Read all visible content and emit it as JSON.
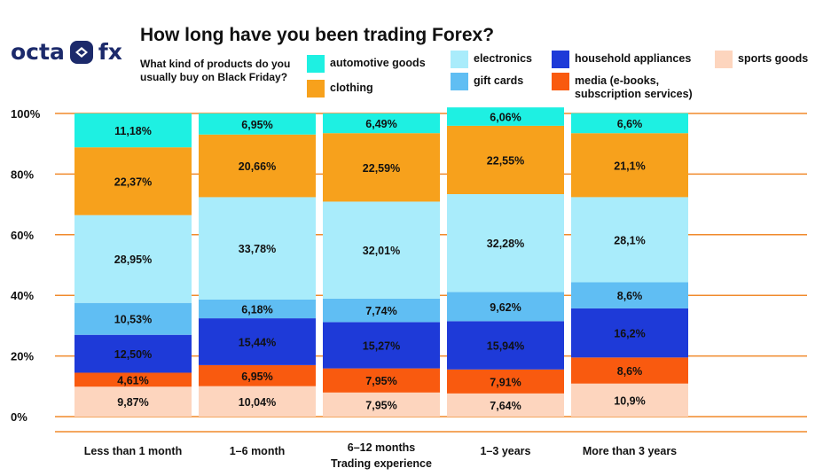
{
  "brand": {
    "name_left": "octa",
    "name_right": "fx"
  },
  "title": "How long have you been trading Forex?",
  "question": "What kind of products do you usually buy on Black Friday?",
  "colors": {
    "gridline": "#f08a2c",
    "axis": "#f08a2c"
  },
  "chart_data": {
    "type": "bar",
    "stacked": true,
    "title": "How long have you been trading Forex?",
    "xlabel": "Trading experience",
    "ylabel": "",
    "ylim": [
      0,
      100
    ],
    "y_ticks": [
      "0%",
      "20%",
      "40%",
      "60%",
      "80%",
      "100%"
    ],
    "grid": true,
    "legend_position": "top",
    "categories": [
      "Less than 1 month",
      "1–6 month",
      "6–12 months",
      "1–3 years",
      "More than 3 years"
    ],
    "series": [
      {
        "name": "sports goods",
        "color": "#fdd5be",
        "values": [
          9.87,
          10.04,
          7.95,
          7.64,
          10.9
        ],
        "labels": [
          "9,87%",
          "10,04%",
          "7,95%",
          "7,64%",
          "10,9%"
        ]
      },
      {
        "name": "media (e-books, subscription services)",
        "color": "#f95a0f",
        "values": [
          4.61,
          6.95,
          7.95,
          7.91,
          8.6
        ],
        "labels": [
          "4,61%",
          "6,95%",
          "7,95%",
          "7,91%",
          "8,6%"
        ]
      },
      {
        "name": "household appliances",
        "color": "#1e3ad8",
        "values": [
          12.5,
          15.44,
          15.27,
          15.94,
          16.2
        ],
        "labels": [
          "12,50%",
          "15,44%",
          "15,27%",
          "15,94%",
          "16,2%"
        ]
      },
      {
        "name": "gift cards",
        "color": "#60bef3",
        "values": [
          10.53,
          6.18,
          7.74,
          9.62,
          8.6
        ],
        "labels": [
          "10,53%",
          "6,18%",
          "7,74%",
          "9,62%",
          "8,6%"
        ]
      },
      {
        "name": "electronics",
        "color": "#a9ecfb",
        "values": [
          28.95,
          33.78,
          32.01,
          32.28,
          28.1
        ],
        "labels": [
          "28,95%",
          "33,78%",
          "32,01%",
          "32,28%",
          "28,1%"
        ]
      },
      {
        "name": "clothing",
        "color": "#f7a11c",
        "values": [
          22.37,
          20.66,
          22.59,
          22.55,
          21.1
        ],
        "labels": [
          "22,37%",
          "20,66%",
          "22,59%",
          "22,55%",
          "21,1%"
        ]
      },
      {
        "name": "automotive goods",
        "color": "#1ef0e2",
        "values": [
          11.18,
          6.95,
          6.49,
          6.06,
          6.6
        ],
        "labels": [
          "11,18%",
          "6,95%",
          "6,49%",
          "6,06%",
          "6,6%"
        ]
      }
    ]
  },
  "legend": [
    {
      "label": "automotive goods",
      "color": "#1ef0e2"
    },
    {
      "label": "clothing",
      "color": "#f7a11c"
    },
    {
      "label": "electronics",
      "color": "#a9ecfb"
    },
    {
      "label": "gift cards",
      "color": "#60bef3"
    },
    {
      "label": "household appliances",
      "color": "#1e3ad8"
    },
    {
      "label": "media (e-books, subscription services)",
      "color": "#f95a0f"
    },
    {
      "label": "sports goods",
      "color": "#fdd5be"
    }
  ]
}
